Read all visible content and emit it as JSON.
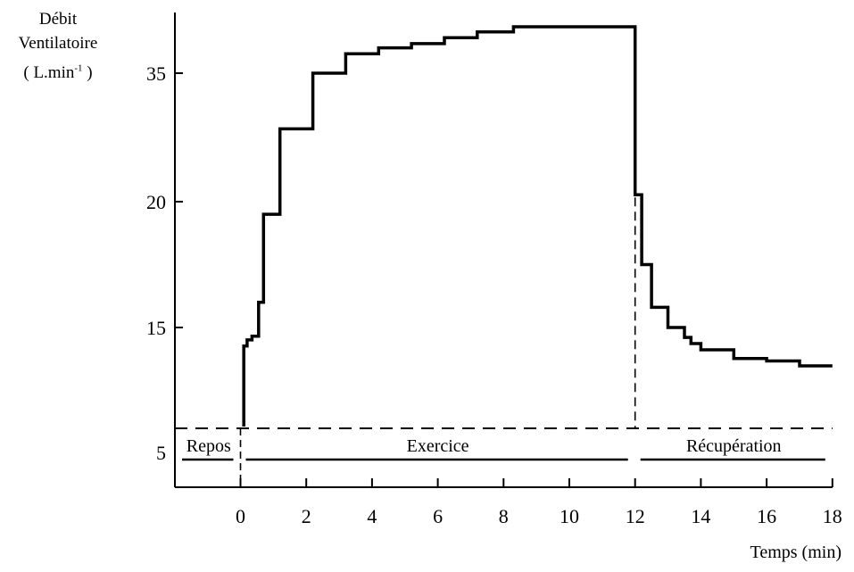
{
  "chart_data": {
    "type": "line",
    "ylabel": {
      "line1": "Débit",
      "line2": "Ventilatoire",
      "unit_prefix": "( L.min",
      "unit_exponent": "-1",
      "unit_suffix": " )"
    },
    "xlabel": "Temps (min)",
    "x_ticks": [
      "0",
      "2",
      "4",
      "6",
      "8",
      "10",
      "12",
      "14",
      "16",
      "18"
    ],
    "y_ticks": [
      "5",
      "15",
      "20",
      "35"
    ],
    "xlim": [
      -2,
      18
    ],
    "exercise_start": 0,
    "exercise_end": 12,
    "phases": [
      {
        "label": "Repos",
        "start": -2,
        "end": 0
      },
      {
        "label": "Exercice",
        "start": 0,
        "end": 12
      },
      {
        "label": "Récupération",
        "start": 12,
        "end": 18
      }
    ],
    "series": [
      {
        "points": [
          [
            0.1,
            7
          ],
          [
            0.1,
            13.5
          ],
          [
            0.2,
            13.5
          ],
          [
            0.2,
            14.0
          ],
          [
            0.35,
            14.0
          ],
          [
            0.35,
            14.3
          ],
          [
            0.55,
            14.3
          ],
          [
            0.55,
            16.0
          ],
          [
            0.7,
            16.0
          ],
          [
            0.7,
            19.5
          ],
          [
            1.2,
            19.5
          ],
          [
            1.2,
            28.5
          ],
          [
            2.2,
            28.5
          ],
          [
            2.2,
            35.0
          ],
          [
            3.2,
            35.0
          ],
          [
            3.2,
            37.3
          ],
          [
            4.2,
            37.3
          ],
          [
            4.2,
            38.0
          ],
          [
            5.2,
            38.0
          ],
          [
            5.2,
            38.5
          ],
          [
            6.2,
            38.5
          ],
          [
            6.2,
            39.2
          ],
          [
            7.2,
            39.2
          ],
          [
            7.2,
            39.9
          ],
          [
            8.3,
            39.9
          ],
          [
            8.3,
            40.5
          ],
          [
            12.0,
            40.5
          ],
          [
            12.0,
            20.8
          ],
          [
            12.2,
            20.8
          ],
          [
            12.2,
            17.5
          ],
          [
            12.5,
            17.5
          ],
          [
            12.5,
            15.8
          ],
          [
            13.0,
            15.8
          ],
          [
            13.0,
            15.0
          ],
          [
            13.5,
            15.0
          ],
          [
            13.5,
            14.2
          ],
          [
            13.7,
            14.2
          ],
          [
            13.7,
            13.7
          ],
          [
            14.0,
            13.7
          ],
          [
            14.0,
            13.2
          ],
          [
            15.0,
            13.2
          ],
          [
            15.0,
            12.5
          ],
          [
            16.0,
            12.5
          ],
          [
            16.0,
            12.3
          ],
          [
            17.0,
            12.3
          ],
          [
            17.0,
            11.9
          ],
          [
            18.0,
            11.9
          ]
        ]
      }
    ]
  }
}
